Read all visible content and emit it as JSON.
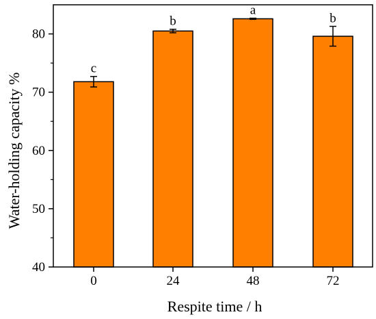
{
  "chart_data": {
    "type": "bar",
    "title": "",
    "xlabel": "Respite time / h",
    "ylabel": "Water-holding capacity %",
    "categories": [
      "0",
      "24",
      "48",
      "72"
    ],
    "values": [
      71.8,
      80.5,
      82.6,
      79.6
    ],
    "errors": [
      0.9,
      0.3,
      0.1,
      1.7
    ],
    "significance_labels": [
      "c",
      "b",
      "a",
      "b"
    ],
    "ylim": [
      40,
      85
    ],
    "yticks": [
      40,
      50,
      60,
      70,
      80
    ],
    "grid": false,
    "bar_color": "#FF8000",
    "bar_edge_color": "#000000"
  }
}
